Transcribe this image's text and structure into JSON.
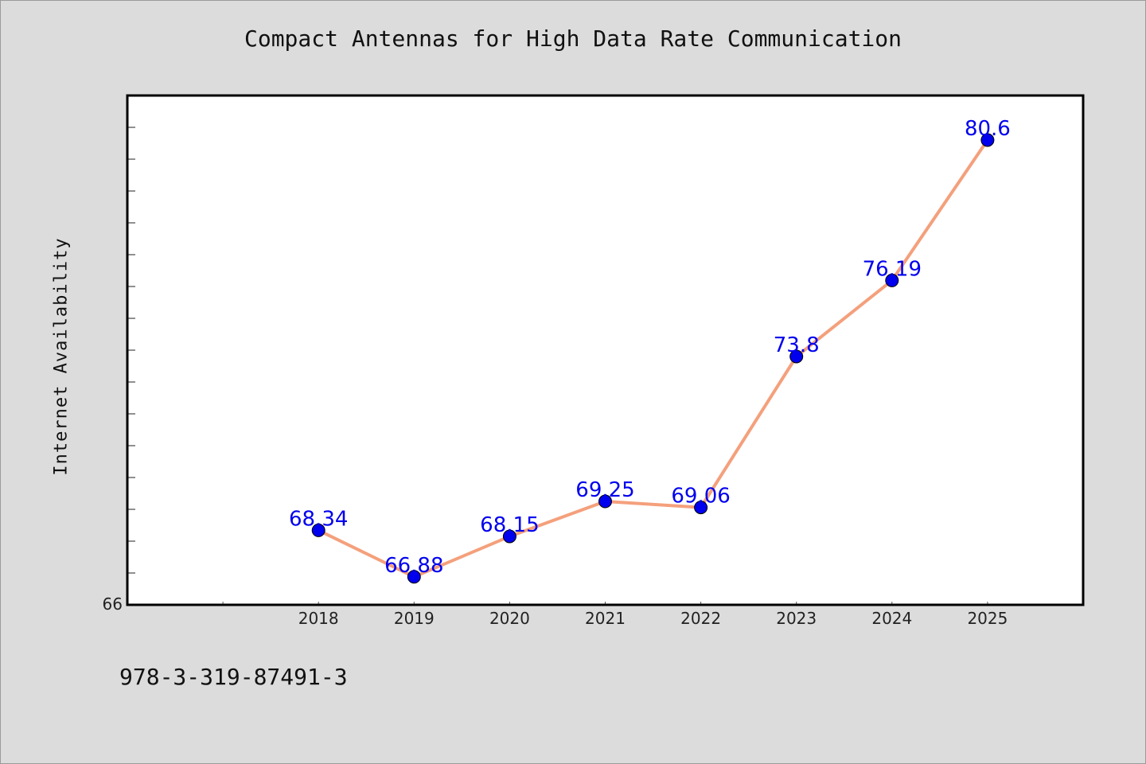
{
  "page": {
    "background": "#dcdcdc",
    "footer_code": "978-3-319-87491-3"
  },
  "chart_data": {
    "type": "line",
    "title": "Compact Antennas for High Data Rate Communication",
    "xlabel": "",
    "ylabel": "Internet Availability",
    "categories": [
      "2018",
      "2019",
      "2020",
      "2021",
      "2022",
      "2023",
      "2024",
      "2025"
    ],
    "series": [
      {
        "values": [
          68.34,
          66.88,
          68.15,
          69.25,
          69.06,
          73.8,
          76.19,
          80.6
        ],
        "data_labels": [
          "68.34",
          "66.88",
          "68.15",
          "69.25",
          "69.06",
          "73.8",
          "76.19",
          "80.6"
        ],
        "line_color": "#f4a07c",
        "marker_color": "#0000ee",
        "label_color": "#0000ee"
      }
    ],
    "x_category_slots": 10,
    "first_category_slot": 2,
    "y_tick_labels": [
      "66"
    ],
    "ylim": [
      66,
      82
    ],
    "y_minor_tick_step": 1,
    "grid": false,
    "legend": "none"
  }
}
